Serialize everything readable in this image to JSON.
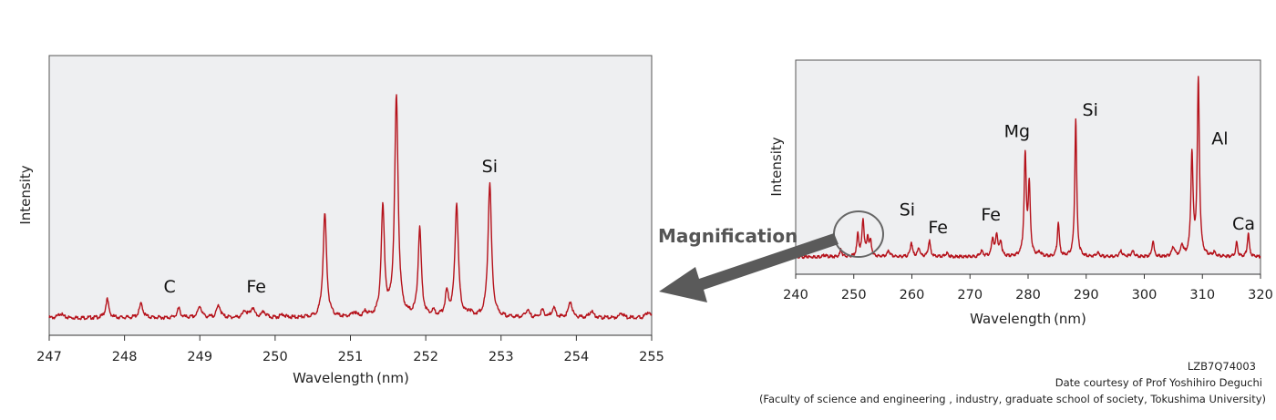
{
  "magnification_label": "Magnification",
  "credits": {
    "code": "LZB7Q74003",
    "line1": "Date courtesy of Prof Yoshihiro Deguchi",
    "line2": "(Faculty of science and engineering , industry, graduate school of society, Tokushima University)"
  },
  "chart_data": [
    {
      "type": "line",
      "xlabel": "Wavelength (nm)",
      "ylabel": "Intensity",
      "xlim": [
        247,
        255
      ],
      "ylim": [
        0,
        1
      ],
      "xticks": [
        247,
        248,
        249,
        250,
        251,
        252,
        253,
        254,
        255
      ],
      "grid": false,
      "baseline": 0.02,
      "peaks": [
        {
          "x": 247.15,
          "h": 0.02,
          "w": 0.03
        },
        {
          "x": 247.77,
          "h": 0.08,
          "w": 0.025
        },
        {
          "x": 248.22,
          "h": 0.06,
          "w": 0.03
        },
        {
          "x": 248.72,
          "h": 0.04,
          "w": 0.025
        },
        {
          "x": 249.0,
          "h": 0.05,
          "w": 0.03
        },
        {
          "x": 249.25,
          "h": 0.055,
          "w": 0.03
        },
        {
          "x": 249.6,
          "h": 0.03,
          "w": 0.03
        },
        {
          "x": 249.7,
          "h": 0.04,
          "w": 0.03
        },
        {
          "x": 249.85,
          "h": 0.025,
          "w": 0.03
        },
        {
          "x": 250.1,
          "h": 0.015,
          "w": 0.03
        },
        {
          "x": 250.66,
          "h": 0.45,
          "w": 0.028
        },
        {
          "x": 251.05,
          "h": 0.02,
          "w": 0.03
        },
        {
          "x": 251.2,
          "h": 0.02,
          "w": 0.03
        },
        {
          "x": 251.43,
          "h": 0.47,
          "w": 0.026
        },
        {
          "x": 251.61,
          "h": 0.95,
          "w": 0.028
        },
        {
          "x": 251.92,
          "h": 0.38,
          "w": 0.026
        },
        {
          "x": 252.1,
          "h": 0.02,
          "w": 0.03
        },
        {
          "x": 252.28,
          "h": 0.1,
          "w": 0.026
        },
        {
          "x": 252.41,
          "h": 0.49,
          "w": 0.027
        },
        {
          "x": 252.58,
          "h": 0.02,
          "w": 0.03
        },
        {
          "x": 252.85,
          "h": 0.58,
          "w": 0.028
        },
        {
          "x": 253.35,
          "h": 0.03,
          "w": 0.03
        },
        {
          "x": 253.55,
          "h": 0.03,
          "w": 0.03
        },
        {
          "x": 253.7,
          "h": 0.04,
          "w": 0.03
        },
        {
          "x": 253.92,
          "h": 0.07,
          "w": 0.028
        },
        {
          "x": 254.2,
          "h": 0.03,
          "w": 0.03
        },
        {
          "x": 254.6,
          "h": 0.02,
          "w": 0.03
        },
        {
          "x": 254.95,
          "h": 0.025,
          "w": 0.03
        }
      ],
      "annotations": [
        {
          "text": "C",
          "x": 248.6,
          "y": 0.13
        },
        {
          "text": "Fe",
          "x": 249.75,
          "y": 0.13
        },
        {
          "text": "Si",
          "x": 252.85,
          "y": 0.65
        }
      ]
    },
    {
      "type": "line",
      "xlabel": "Wavelength (nm)",
      "ylabel": "Intensity",
      "xlim": [
        240,
        320
      ],
      "ylim": [
        0,
        1
      ],
      "xticks": [
        240,
        250,
        260,
        270,
        280,
        290,
        300,
        310,
        320
      ],
      "grid": false,
      "baseline": 0.02,
      "peaks": [
        {
          "x": 245.0,
          "h": 0.01,
          "w": 0.3
        },
        {
          "x": 247.8,
          "h": 0.04,
          "w": 0.2
        },
        {
          "x": 250.7,
          "h": 0.12,
          "w": 0.2
        },
        {
          "x": 251.6,
          "h": 0.2,
          "w": 0.22
        },
        {
          "x": 252.4,
          "h": 0.1,
          "w": 0.2
        },
        {
          "x": 252.9,
          "h": 0.08,
          "w": 0.2
        },
        {
          "x": 256.0,
          "h": 0.03,
          "w": 0.3
        },
        {
          "x": 259.9,
          "h": 0.08,
          "w": 0.22
        },
        {
          "x": 261.2,
          "h": 0.05,
          "w": 0.22
        },
        {
          "x": 263.0,
          "h": 0.09,
          "w": 0.22
        },
        {
          "x": 266.0,
          "h": 0.02,
          "w": 0.3
        },
        {
          "x": 272.0,
          "h": 0.03,
          "w": 0.3
        },
        {
          "x": 273.9,
          "h": 0.1,
          "w": 0.22
        },
        {
          "x": 274.6,
          "h": 0.12,
          "w": 0.22
        },
        {
          "x": 275.3,
          "h": 0.08,
          "w": 0.22
        },
        {
          "x": 279.5,
          "h": 0.55,
          "w": 0.22
        },
        {
          "x": 280.2,
          "h": 0.38,
          "w": 0.22
        },
        {
          "x": 282.0,
          "h": 0.02,
          "w": 0.3
        },
        {
          "x": 285.2,
          "h": 0.19,
          "w": 0.2
        },
        {
          "x": 288.2,
          "h": 0.76,
          "w": 0.2
        },
        {
          "x": 292.0,
          "h": 0.02,
          "w": 0.3
        },
        {
          "x": 296.0,
          "h": 0.03,
          "w": 0.3
        },
        {
          "x": 298.0,
          "h": 0.03,
          "w": 0.3
        },
        {
          "x": 301.5,
          "h": 0.09,
          "w": 0.2
        },
        {
          "x": 305.0,
          "h": 0.05,
          "w": 0.3
        },
        {
          "x": 306.5,
          "h": 0.06,
          "w": 0.25
        },
        {
          "x": 308.2,
          "h": 0.56,
          "w": 0.22
        },
        {
          "x": 309.3,
          "h": 0.97,
          "w": 0.22
        },
        {
          "x": 312.0,
          "h": 0.02,
          "w": 0.3
        },
        {
          "x": 315.9,
          "h": 0.08,
          "w": 0.2
        },
        {
          "x": 317.9,
          "h": 0.13,
          "w": 0.2
        }
      ],
      "annotations": [
        {
          "text": "Si",
          "x": 259.2,
          "y": 0.25
        },
        {
          "text": "Fe",
          "x": 264.5,
          "y": 0.15
        },
        {
          "text": "Fe",
          "x": 273.6,
          "y": 0.22
        },
        {
          "text": "Mg",
          "x": 278.1,
          "y": 0.68
        },
        {
          "text": "Si",
          "x": 290.7,
          "y": 0.8
        },
        {
          "text": "Al",
          "x": 313.0,
          "y": 0.64
        },
        {
          "text": "Ca",
          "x": 317.1,
          "y": 0.17
        }
      ]
    }
  ]
}
